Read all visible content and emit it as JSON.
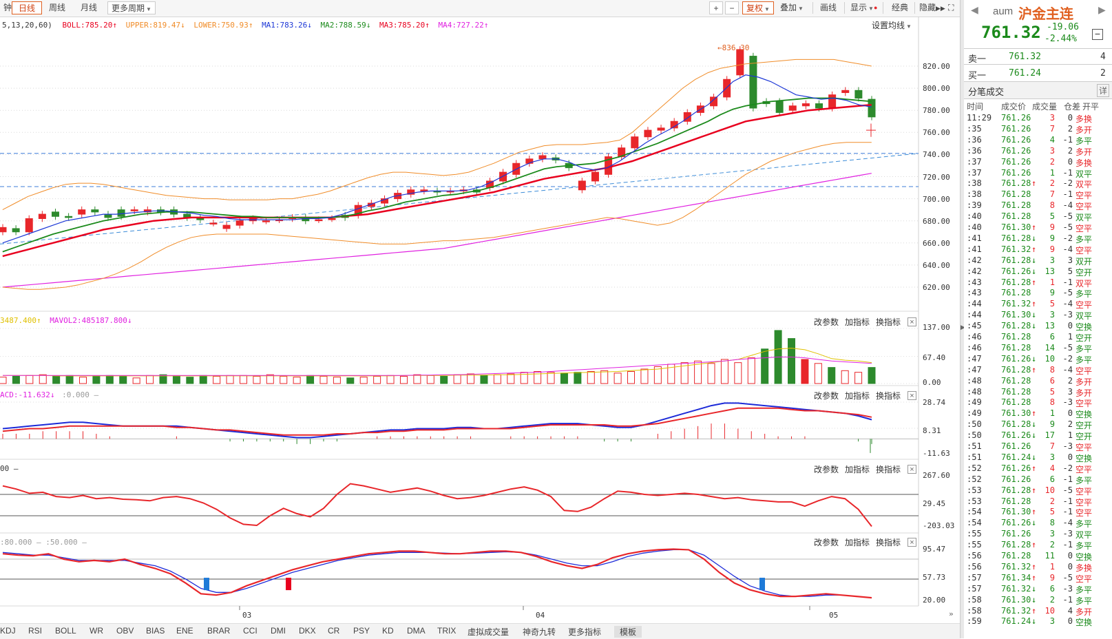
{
  "toolbar": {
    "left_tabs": [
      "钟",
      "日线",
      "周线",
      "月线",
      "更多周期"
    ],
    "right_tabs": [
      "+",
      "−",
      "复权",
      "叠加",
      "画线",
      "显示",
      "经典",
      "隐藏",
      "⛶"
    ]
  },
  "price_panel": {
    "legend_prefix": "5,13,20,60)",
    "boll": "BOLL:785.20",
    "upper": "UPPER:819.47",
    "lower": "LOWER:750.93",
    "ma1": "MA1:783.26",
    "ma2": "MA2:788.59",
    "ma3": "MA3:785.20",
    "ma4": "MA4:727.22",
    "settings": "设置均线",
    "high_label": "836.30",
    "yticks": [
      "820.00",
      "800.00",
      "780.00",
      "760.00",
      "740.00",
      "720.00",
      "700.00",
      "680.00",
      "660.00",
      "640.00",
      "620.00"
    ]
  },
  "panel_buttons": {
    "change": "改参数",
    "add": "加指标",
    "switch": "换指标",
    "close": "×"
  },
  "volume_panel": {
    "legend1": "3487.400",
    "legend2": "MAVOL2:485187.800",
    "yticks": [
      "137.00",
      "67.40",
      "0.00"
    ]
  },
  "macd_panel": {
    "legend1": "ACD:-11.632",
    "legend2": ":0.000",
    "yticks": [
      "28.74",
      "8.31",
      "-11.63"
    ]
  },
  "cci_panel": {
    "legend1": "00",
    "yticks": [
      "267.60",
      "29.45",
      "-203.03"
    ]
  },
  "kdj_panel": {
    "legend1": ":80.000",
    "legend2": ":50.000",
    "yticks": [
      "95.47",
      "57.73",
      "20.00"
    ]
  },
  "x_axis": [
    "03",
    "04",
    "05"
  ],
  "bottom_tabs": [
    "KDJ",
    "RSI",
    "BOLL",
    "WR",
    "OBV",
    "BIAS",
    "ENE",
    "BRAR",
    "CCI",
    "DMI",
    "DKX",
    "CR",
    "PSY",
    "KD",
    "DMA",
    "TRIX",
    "虚拟成交量",
    "神奇九转",
    "更多指标",
    "模板"
  ],
  "quote": {
    "code": "aum",
    "name": "沪金主连",
    "price": "761.32",
    "change": "-19.06",
    "change_pct": "-2.44%",
    "sell_label": "卖一",
    "sell_price": "761.32",
    "sell_vol": "4",
    "buy_label": "买一",
    "buy_price": "761.24",
    "buy_vol": "2",
    "ticks_title": "分笔成交",
    "detail": "详",
    "headers": [
      "时间",
      "成交价",
      "成交量",
      "仓差",
      "开平"
    ]
  },
  "ticks": [
    {
      "t": "11:29",
      "p": "761.26",
      "a": "",
      "v": "3",
      "d": "0",
      "k": "多换",
      "c": "red"
    },
    {
      "t": ":35",
      "p": "761.26",
      "a": "",
      "v": "7",
      "d": "2",
      "k": "多开",
      "c": "red"
    },
    {
      "t": ":36",
      "p": "761.26",
      "a": "",
      "v": "4",
      "d": "-1",
      "k": "多平",
      "c": "green"
    },
    {
      "t": ":36",
      "p": "761.26",
      "a": "",
      "v": "3",
      "d": "2",
      "k": "多开",
      "c": "red"
    },
    {
      "t": ":37",
      "p": "761.26",
      "a": "",
      "v": "2",
      "d": "0",
      "k": "多换",
      "c": "red"
    },
    {
      "t": ":37",
      "p": "761.26",
      "a": "",
      "v": "1",
      "d": "-1",
      "k": "双平",
      "c": "green"
    },
    {
      "t": ":38",
      "p": "761.28",
      "a": "↑",
      "v": "2",
      "d": "-2",
      "k": "双平",
      "c": "red"
    },
    {
      "t": ":38",
      "p": "761.28",
      "a": "",
      "v": "7",
      "d": "-1",
      "k": "空平",
      "c": "red"
    },
    {
      "t": ":39",
      "p": "761.28",
      "a": "",
      "v": "8",
      "d": "-4",
      "k": "空平",
      "c": "red"
    },
    {
      "t": ":40",
      "p": "761.28",
      "a": "",
      "v": "5",
      "d": "-5",
      "k": "双平",
      "c": "green"
    },
    {
      "t": ":40",
      "p": "761.30",
      "a": "↑",
      "v": "9",
      "d": "-5",
      "k": "空平",
      "c": "red"
    },
    {
      "t": ":41",
      "p": "761.28",
      "a": "↓",
      "v": "9",
      "d": "-2",
      "k": "多平",
      "c": "green"
    },
    {
      "t": ":41",
      "p": "761.32",
      "a": "↑",
      "v": "9",
      "d": "-4",
      "k": "空平",
      "c": "red"
    },
    {
      "t": ":42",
      "p": "761.28",
      "a": "↓",
      "v": "3",
      "d": "3",
      "k": "双开",
      "c": "green"
    },
    {
      "t": ":42",
      "p": "761.26",
      "a": "↓",
      "v": "13",
      "d": "5",
      "k": "空开",
      "c": "green"
    },
    {
      "t": ":43",
      "p": "761.28",
      "a": "↑",
      "v": "1",
      "d": "-1",
      "k": "双平",
      "c": "red"
    },
    {
      "t": ":43",
      "p": "761.28",
      "a": "",
      "v": "9",
      "d": "-5",
      "k": "多平",
      "c": "green"
    },
    {
      "t": ":44",
      "p": "761.32",
      "a": "↑",
      "v": "5",
      "d": "-4",
      "k": "空平",
      "c": "red"
    },
    {
      "t": ":44",
      "p": "761.30",
      "a": "↓",
      "v": "3",
      "d": "-3",
      "k": "双平",
      "c": "green"
    },
    {
      "t": ":45",
      "p": "761.28",
      "a": "↓",
      "v": "13",
      "d": "0",
      "k": "空换",
      "c": "green"
    },
    {
      "t": ":46",
      "p": "761.28",
      "a": "",
      "v": "6",
      "d": "1",
      "k": "空开",
      "c": "green"
    },
    {
      "t": ":46",
      "p": "761.28",
      "a": "",
      "v": "14",
      "d": "-5",
      "k": "多平",
      "c": "green"
    },
    {
      "t": ":47",
      "p": "761.26",
      "a": "↓",
      "v": "10",
      "d": "-2",
      "k": "多平",
      "c": "green"
    },
    {
      "t": ":47",
      "p": "761.28",
      "a": "↑",
      "v": "8",
      "d": "-4",
      "k": "空平",
      "c": "red"
    },
    {
      "t": ":48",
      "p": "761.28",
      "a": "",
      "v": "6",
      "d": "2",
      "k": "多开",
      "c": "red"
    },
    {
      "t": ":48",
      "p": "761.28",
      "a": "",
      "v": "5",
      "d": "3",
      "k": "多开",
      "c": "red"
    },
    {
      "t": ":49",
      "p": "761.28",
      "a": "",
      "v": "8",
      "d": "-3",
      "k": "空平",
      "c": "red"
    },
    {
      "t": ":49",
      "p": "761.30",
      "a": "↑",
      "v": "1",
      "d": "0",
      "k": "空换",
      "c": "green"
    },
    {
      "t": ":50",
      "p": "761.28",
      "a": "↓",
      "v": "9",
      "d": "2",
      "k": "空开",
      "c": "green"
    },
    {
      "t": ":50",
      "p": "761.26",
      "a": "↓",
      "v": "17",
      "d": "1",
      "k": "空开",
      "c": "green"
    },
    {
      "t": ":51",
      "p": "761.26",
      "a": "",
      "v": "7",
      "d": "-3",
      "k": "空平",
      "c": "red"
    },
    {
      "t": ":51",
      "p": "761.24",
      "a": "↓",
      "v": "3",
      "d": "0",
      "k": "空换",
      "c": "green"
    },
    {
      "t": ":52",
      "p": "761.26",
      "a": "↑",
      "v": "4",
      "d": "-2",
      "k": "空平",
      "c": "red"
    },
    {
      "t": ":52",
      "p": "761.26",
      "a": "",
      "v": "6",
      "d": "-1",
      "k": "多平",
      "c": "green"
    },
    {
      "t": ":53",
      "p": "761.28",
      "a": "↑",
      "v": "10",
      "d": "-5",
      "k": "空平",
      "c": "red"
    },
    {
      "t": ":53",
      "p": "761.28",
      "a": "",
      "v": "2",
      "d": "-1",
      "k": "空平",
      "c": "red"
    },
    {
      "t": ":54",
      "p": "761.30",
      "a": "↑",
      "v": "5",
      "d": "-1",
      "k": "空平",
      "c": "red"
    },
    {
      "t": ":54",
      "p": "761.26",
      "a": "↓",
      "v": "8",
      "d": "-4",
      "k": "多平",
      "c": "green"
    },
    {
      "t": ":55",
      "p": "761.26",
      "a": "",
      "v": "3",
      "d": "-3",
      "k": "双平",
      "c": "green"
    },
    {
      "t": ":55",
      "p": "761.28",
      "a": "↑",
      "v": "2",
      "d": "-1",
      "k": "多平",
      "c": "green"
    },
    {
      "t": ":56",
      "p": "761.28",
      "a": "",
      "v": "11",
      "d": "0",
      "k": "空换",
      "c": "green"
    },
    {
      "t": ":56",
      "p": "761.32",
      "a": "↑",
      "v": "1",
      "d": "0",
      "k": "多换",
      "c": "red"
    },
    {
      "t": ":57",
      "p": "761.34",
      "a": "↑",
      "v": "9",
      "d": "-5",
      "k": "空平",
      "c": "red"
    },
    {
      "t": ":57",
      "p": "761.32",
      "a": "↓",
      "v": "6",
      "d": "-3",
      "k": "多平",
      "c": "green"
    },
    {
      "t": ":58",
      "p": "761.30",
      "a": "↓",
      "v": "2",
      "d": "-1",
      "k": "多平",
      "c": "green"
    },
    {
      "t": ":58",
      "p": "761.32",
      "a": "↑",
      "v": "10",
      "d": "4",
      "k": "多开",
      "c": "red"
    },
    {
      "t": ":59",
      "p": "761.24",
      "a": "↓",
      "v": "3",
      "d": "0",
      "k": "空换",
      "c": "green"
    }
  ],
  "colors": {
    "up": "#e8262a",
    "down": "#2d8a2d",
    "accent": "#e06020",
    "ma1": "#1c37d6",
    "ma2": "#1b8a1b",
    "ma3": "#e8001e",
    "ma4": "#e020e0",
    "boll": "#f08c28",
    "macd_dif": "#1c2ad8",
    "macd_dea": "#e8262a"
  }
}
